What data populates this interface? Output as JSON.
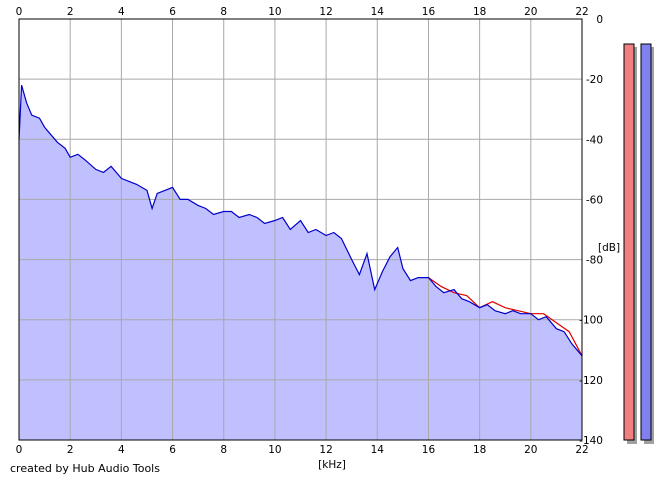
{
  "footer": {
    "credit": "created by Hub Audio Tools"
  },
  "chart_data": {
    "type": "area",
    "xlabel": "[kHz]",
    "ylabel": "[dB]",
    "xlim": [
      0,
      22
    ],
    "ylim": [
      -140,
      0
    ],
    "x_ticks": [
      0,
      2,
      4,
      6,
      8,
      10,
      12,
      14,
      16,
      18,
      20,
      22
    ],
    "y_ticks": [
      0,
      -20,
      -40,
      -60,
      -80,
      -100,
      -120,
      -140
    ],
    "y_tick_labels": [
      "0",
      "-20",
      "-40",
      "-60",
      "-80",
      "-100",
      "-120",
      "-140"
    ],
    "grid": true,
    "colors": {
      "fill": "#c0c0ff",
      "blue_series": "#0000c8",
      "red_series": "#e00000",
      "grid": "#a8a8a8"
    },
    "series": [
      {
        "color": "blue",
        "x": [
          0,
          0.1,
          0.3,
          0.5,
          0.8,
          1.0,
          1.2,
          1.5,
          1.8,
          2.0,
          2.3,
          2.6,
          3.0,
          3.3,
          3.6,
          4.0,
          4.3,
          4.6,
          5.0,
          5.2,
          5.4,
          5.7,
          6.0,
          6.3,
          6.6,
          7.0,
          7.3,
          7.6,
          8.0,
          8.3,
          8.6,
          9.0,
          9.3,
          9.6,
          10.0,
          10.3,
          10.6,
          11.0,
          11.3,
          11.6,
          12.0,
          12.3,
          12.6,
          13.0,
          13.3,
          13.6,
          13.9,
          14.2,
          14.5,
          14.8,
          15.0,
          15.3,
          15.6,
          16.0,
          16.3,
          16.6,
          17.0,
          17.3,
          17.6,
          18.0,
          18.3,
          18.6,
          19.0,
          19.3,
          19.6,
          20.0,
          20.3,
          20.6,
          21.0,
          21.3,
          21.6,
          22.0
        ],
        "values": [
          -40,
          -22,
          -28,
          -32,
          -33,
          -36,
          -38,
          -41,
          -43,
          -46,
          -45,
          -47,
          -50,
          -51,
          -49,
          -53,
          -54,
          -55,
          -57,
          -63,
          -58,
          -57,
          -56,
          -60,
          -60,
          -62,
          -63,
          -65,
          -64,
          -64,
          -66,
          -65,
          -66,
          -68,
          -67,
          -66,
          -70,
          -67,
          -71,
          -70,
          -72,
          -71,
          -73,
          -80,
          -85,
          -78,
          -90,
          -84,
          -79,
          -76,
          -83,
          -87,
          -86,
          -86,
          -89,
          -91,
          -90,
          -93,
          -94,
          -96,
          -95,
          -97,
          -98,
          -97,
          -98,
          -98,
          -100,
          -99,
          -103,
          -104,
          -108,
          -112
        ]
      },
      {
        "color": "red",
        "x": [
          16.0,
          16.5,
          17.0,
          17.5,
          18.0,
          18.5,
          19.0,
          19.5,
          20.0,
          20.5,
          21.0,
          21.5,
          22.0
        ],
        "values": [
          -86,
          -89,
          -91,
          -92,
          -96,
          -94,
          -96,
          -97,
          -98,
          -98,
          -101,
          -104,
          -112
        ]
      }
    ],
    "level_meters": {
      "left_color": "#f08080",
      "right_color": "#8080f0",
      "left_level": 0.0,
      "right_level": 0.0
    }
  }
}
